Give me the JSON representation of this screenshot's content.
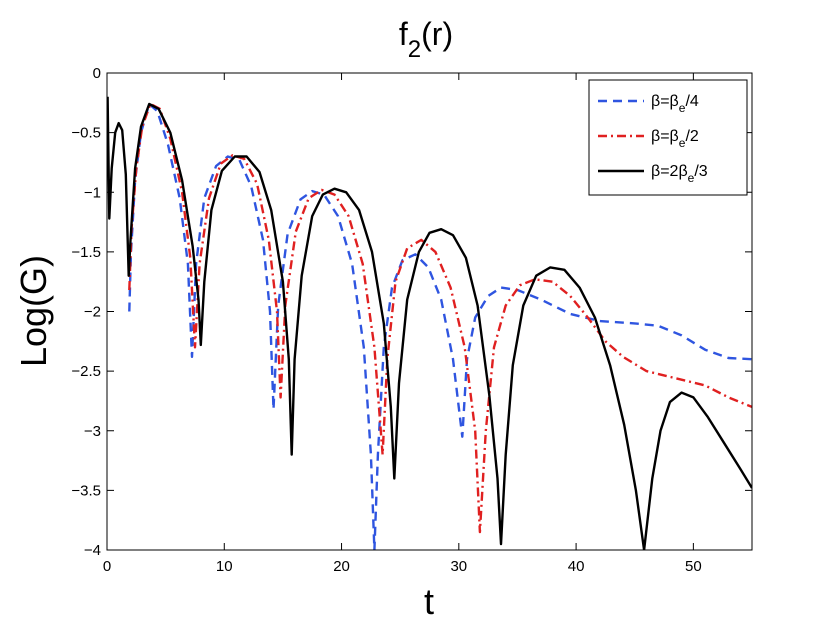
{
  "chart_data": {
    "type": "line",
    "title": {
      "main": "f",
      "sub": "2",
      "rest": "(r)"
    },
    "xlabel": "t",
    "ylabel": "Log(G)",
    "xlim": [
      0,
      55
    ],
    "ylim": [
      -4,
      0
    ],
    "xticks": [
      0,
      10,
      20,
      30,
      40,
      50
    ],
    "yticks": [
      0,
      -0.5,
      -1,
      -1.5,
      -2,
      -2.5,
      -3,
      -3.5,
      -4
    ],
    "xtick_labels": [
      "0",
      "10",
      "20",
      "30",
      "40",
      "50"
    ],
    "ytick_labels": [
      "0",
      "−0.5",
      "−1",
      "−1.5",
      "−2",
      "−2.5",
      "−3",
      "−3.5",
      "−4"
    ],
    "grid": false,
    "legend_position": "top-right",
    "series": [
      {
        "legend": {
          "pre": "β=β",
          "sub": "e",
          "post": "/4"
        },
        "color": "#2f55e0",
        "dash": "dashed",
        "points": [
          [
            1.9,
            -2.0
          ],
          [
            2.05,
            -1.5
          ],
          [
            2.4,
            -0.9
          ],
          [
            2.9,
            -0.5
          ],
          [
            3.6,
            -0.26
          ],
          [
            4.3,
            -0.32
          ],
          [
            5.2,
            -0.6
          ],
          [
            6.2,
            -1.05
          ],
          [
            6.9,
            -1.6
          ],
          [
            7.25,
            -2.38
          ],
          [
            7.6,
            -1.6
          ],
          [
            8.3,
            -1.05
          ],
          [
            9.3,
            -0.78
          ],
          [
            10.3,
            -0.7
          ],
          [
            11.3,
            -0.73
          ],
          [
            12.3,
            -0.95
          ],
          [
            13.3,
            -1.4
          ],
          [
            13.9,
            -2.0
          ],
          [
            14.2,
            -2.82
          ],
          [
            14.6,
            -1.95
          ],
          [
            15.4,
            -1.35
          ],
          [
            16.5,
            -1.06
          ],
          [
            17.5,
            -0.99
          ],
          [
            18.5,
            -1.02
          ],
          [
            19.7,
            -1.2
          ],
          [
            20.9,
            -1.6
          ],
          [
            21.9,
            -2.3
          ],
          [
            22.5,
            -3.2
          ],
          [
            22.8,
            -4.0
          ],
          [
            23.1,
            -3.2
          ],
          [
            23.6,
            -2.3
          ],
          [
            24.3,
            -1.8
          ],
          [
            25.2,
            -1.57
          ],
          [
            26.3,
            -1.52
          ],
          [
            27.4,
            -1.63
          ],
          [
            28.5,
            -1.9
          ],
          [
            29.5,
            -2.4
          ],
          [
            30.3,
            -3.05
          ],
          [
            30.7,
            -2.4
          ],
          [
            31.4,
            -2.05
          ],
          [
            32.5,
            -1.87
          ],
          [
            33.6,
            -1.8
          ],
          [
            35.0,
            -1.82
          ],
          [
            37.0,
            -1.9
          ],
          [
            39.5,
            -2.02
          ],
          [
            42.0,
            -2.08
          ],
          [
            45.0,
            -2.1
          ],
          [
            47.0,
            -2.12
          ],
          [
            49.0,
            -2.2
          ],
          [
            51.0,
            -2.32
          ],
          [
            53.0,
            -2.39
          ],
          [
            55.0,
            -2.4
          ]
        ]
      },
      {
        "legend": {
          "pre": "β=β",
          "sub": "e",
          "post": "/2"
        },
        "color": "#e02020",
        "dash": "dashdot",
        "points": [
          [
            1.9,
            -1.82
          ],
          [
            2.1,
            -1.3
          ],
          [
            2.5,
            -0.8
          ],
          [
            3.0,
            -0.45
          ],
          [
            3.7,
            -0.26
          ],
          [
            4.5,
            -0.3
          ],
          [
            5.4,
            -0.55
          ],
          [
            6.4,
            -1.0
          ],
          [
            7.1,
            -1.55
          ],
          [
            7.5,
            -2.3
          ],
          [
            7.9,
            -1.6
          ],
          [
            8.7,
            -1.05
          ],
          [
            9.7,
            -0.76
          ],
          [
            10.7,
            -0.69
          ],
          [
            11.7,
            -0.72
          ],
          [
            12.8,
            -0.93
          ],
          [
            13.8,
            -1.4
          ],
          [
            14.5,
            -2.0
          ],
          [
            14.8,
            -2.72
          ],
          [
            15.2,
            -1.95
          ],
          [
            16.1,
            -1.33
          ],
          [
            17.2,
            -1.05
          ],
          [
            18.3,
            -0.98
          ],
          [
            19.4,
            -1.02
          ],
          [
            20.6,
            -1.2
          ],
          [
            21.8,
            -1.6
          ],
          [
            22.8,
            -2.3
          ],
          [
            23.5,
            -3.2
          ],
          [
            23.9,
            -2.4
          ],
          [
            24.6,
            -1.75
          ],
          [
            25.6,
            -1.47
          ],
          [
            26.8,
            -1.4
          ],
          [
            28.0,
            -1.5
          ],
          [
            29.3,
            -1.8
          ],
          [
            30.5,
            -2.3
          ],
          [
            31.4,
            -3.0
          ],
          [
            31.8,
            -3.85
          ],
          [
            32.3,
            -3.0
          ],
          [
            33.0,
            -2.3
          ],
          [
            34.0,
            -1.95
          ],
          [
            35.2,
            -1.78
          ],
          [
            36.5,
            -1.73
          ],
          [
            38.0,
            -1.75
          ],
          [
            39.5,
            -1.87
          ],
          [
            41.0,
            -2.05
          ],
          [
            42.5,
            -2.25
          ],
          [
            44.0,
            -2.38
          ],
          [
            46.0,
            -2.5
          ],
          [
            48.5,
            -2.56
          ],
          [
            51.0,
            -2.62
          ],
          [
            53.0,
            -2.72
          ],
          [
            55.0,
            -2.8
          ]
        ]
      },
      {
        "legend": {
          "pre": "β=2β",
          "sub": "e",
          "post": "/3"
        },
        "color": "#000000",
        "dash": "solid",
        "points": [
          [
            0.05,
            -0.2
          ],
          [
            0.2,
            -1.22
          ],
          [
            0.4,
            -0.8
          ],
          [
            0.7,
            -0.5
          ],
          [
            1.0,
            -0.42
          ],
          [
            1.3,
            -0.48
          ],
          [
            1.6,
            -0.85
          ],
          [
            1.85,
            -1.7
          ],
          [
            2.0,
            -1.4
          ],
          [
            2.4,
            -0.8
          ],
          [
            2.9,
            -0.45
          ],
          [
            3.6,
            -0.26
          ],
          [
            4.4,
            -0.3
          ],
          [
            5.4,
            -0.5
          ],
          [
            6.4,
            -0.9
          ],
          [
            7.3,
            -1.45
          ],
          [
            7.8,
            -1.9
          ],
          [
            8.0,
            -2.28
          ],
          [
            8.3,
            -1.75
          ],
          [
            8.9,
            -1.15
          ],
          [
            9.8,
            -0.82
          ],
          [
            10.9,
            -0.7
          ],
          [
            11.9,
            -0.7
          ],
          [
            13.0,
            -0.83
          ],
          [
            14.0,
            -1.15
          ],
          [
            15.0,
            -1.75
          ],
          [
            15.5,
            -2.4
          ],
          [
            15.75,
            -3.2
          ],
          [
            16.0,
            -2.4
          ],
          [
            16.6,
            -1.7
          ],
          [
            17.5,
            -1.2
          ],
          [
            18.4,
            -1.02
          ],
          [
            19.4,
            -0.97
          ],
          [
            20.4,
            -1.0
          ],
          [
            21.5,
            -1.15
          ],
          [
            22.6,
            -1.5
          ],
          [
            23.6,
            -2.1
          ],
          [
            24.2,
            -2.8
          ],
          [
            24.5,
            -3.4
          ],
          [
            24.9,
            -2.6
          ],
          [
            25.6,
            -1.9
          ],
          [
            26.6,
            -1.5
          ],
          [
            27.5,
            -1.34
          ],
          [
            28.5,
            -1.31
          ],
          [
            29.5,
            -1.36
          ],
          [
            30.6,
            -1.55
          ],
          [
            31.6,
            -1.95
          ],
          [
            32.6,
            -2.7
          ],
          [
            33.3,
            -3.4
          ],
          [
            33.6,
            -3.95
          ],
          [
            34.0,
            -3.2
          ],
          [
            34.6,
            -2.45
          ],
          [
            35.5,
            -1.95
          ],
          [
            36.6,
            -1.7
          ],
          [
            37.8,
            -1.63
          ],
          [
            39.0,
            -1.65
          ],
          [
            40.3,
            -1.8
          ],
          [
            41.6,
            -2.05
          ],
          [
            42.9,
            -2.45
          ],
          [
            44.1,
            -2.95
          ],
          [
            45.1,
            -3.5
          ],
          [
            45.8,
            -4.0
          ],
          [
            46.5,
            -3.4
          ],
          [
            47.2,
            -3.0
          ],
          [
            48.0,
            -2.76
          ],
          [
            49.0,
            -2.68
          ],
          [
            50.0,
            -2.72
          ],
          [
            51.2,
            -2.88
          ],
          [
            52.6,
            -3.1
          ],
          [
            54.0,
            -3.32
          ],
          [
            55.0,
            -3.48
          ]
        ]
      }
    ]
  }
}
